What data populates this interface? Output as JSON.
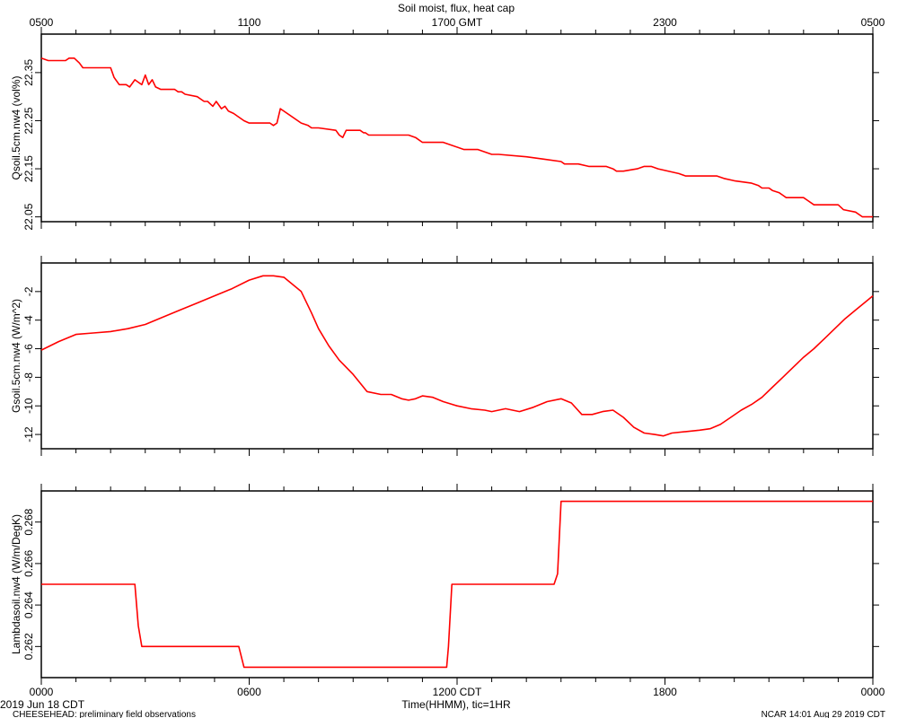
{
  "chart_title": "Soil moist, flux, heat cap",
  "top_time_labels": [
    "0500",
    "1100",
    "1700 GMT",
    "2300",
    "0500"
  ],
  "bottom_time_labels": [
    "0000",
    "0600",
    "1200 CDT",
    "1800",
    "0000"
  ],
  "x_axis_label": "Time(HHMM), tic=1HR",
  "date_label": "2019 Jun 18 CDT",
  "footer_left": "CHEESEHEAD: preliminary field observations",
  "footer_right": "NCAR 14:01 Aug 29 2019 CDT",
  "line_color": "#ff0000",
  "chart_data": [
    {
      "type": "line",
      "ylabel": "Qsoil.5cm.nw4 (vol%)",
      "xlim": [
        0,
        24
      ],
      "ylim": [
        22.04,
        22.43
      ],
      "yticks": [
        22.05,
        22.15,
        22.25,
        22.35
      ],
      "ytick_labels": [
        "22.05",
        "22.15",
        "22.25",
        "22.35"
      ],
      "x": [
        0,
        0.2,
        0.7,
        0.8,
        0.95,
        1.1,
        1.2,
        1.4,
        2.0,
        2.1,
        2.25,
        2.45,
        2.55,
        2.7,
        2.8,
        2.9,
        3.0,
        3.1,
        3.2,
        3.3,
        3.45,
        3.7,
        3.85,
        3.95,
        4.05,
        4.15,
        4.5,
        4.7,
        4.8,
        4.95,
        5.05,
        5.2,
        5.3,
        5.4,
        5.55,
        5.65,
        5.85,
        6.0,
        6.5,
        6.6,
        6.7,
        6.8,
        6.9,
        7.5,
        7.7,
        7.8,
        8.0,
        8.5,
        8.6,
        8.7,
        8.8,
        9.0,
        9.2,
        9.3,
        9.35,
        9.45,
        10.0,
        10.6,
        10.8,
        11.0,
        11.6,
        12.2,
        12.6,
        13.0,
        13.2,
        14.0,
        14.5,
        15.0,
        15.1,
        15.5,
        15.8,
        16.0,
        16.3,
        16.5,
        16.6,
        16.8,
        17.2,
        17.4,
        17.6,
        17.8,
        18.4,
        18.6,
        19.5,
        19.7,
        20.0,
        20.5,
        20.7,
        20.8,
        21.0,
        21.1,
        21.3,
        21.4,
        21.5,
        22.0,
        22.1,
        22.3,
        23.0,
        23.15,
        23.5,
        23.7,
        24.0
      ],
      "y": [
        22.38,
        22.375,
        22.375,
        22.38,
        22.38,
        22.37,
        22.36,
        22.36,
        22.36,
        22.34,
        22.325,
        22.325,
        22.32,
        22.335,
        22.33,
        22.325,
        22.345,
        22.325,
        22.335,
        22.32,
        22.315,
        22.315,
        22.315,
        22.31,
        22.31,
        22.305,
        22.3,
        22.29,
        22.29,
        22.28,
        22.29,
        22.275,
        22.28,
        22.27,
        22.265,
        22.26,
        22.25,
        22.245,
        22.245,
        22.245,
        22.24,
        22.245,
        22.275,
        22.245,
        22.24,
        22.235,
        22.235,
        22.23,
        22.22,
        22.215,
        22.23,
        22.23,
        22.23,
        22.225,
        22.225,
        22.22,
        22.22,
        22.22,
        22.215,
        22.205,
        22.205,
        22.19,
        22.19,
        22.18,
        22.18,
        22.175,
        22.17,
        22.165,
        22.16,
        22.16,
        22.155,
        22.155,
        22.155,
        22.15,
        22.145,
        22.145,
        22.15,
        22.155,
        22.155,
        22.15,
        22.14,
        22.135,
        22.135,
        22.13,
        22.125,
        22.12,
        22.115,
        22.11,
        22.11,
        22.105,
        22.1,
        22.095,
        22.09,
        22.09,
        22.085,
        22.075,
        22.075,
        22.065,
        22.06,
        22.05,
        22.05
      ]
    },
    {
      "type": "line",
      "ylabel": "Gsoil.5cm.nw4 (W/m^2)",
      "xlim": [
        0,
        24
      ],
      "ylim": [
        -13,
        0
      ],
      "yticks": [
        -12,
        -10,
        -8,
        -6,
        -4,
        -2
      ],
      "ytick_labels": [
        "-12",
        "-10",
        "-8",
        "-6",
        "-4",
        "-2"
      ],
      "x": [
        0,
        0.5,
        1.0,
        1.5,
        2.0,
        2.5,
        3.0,
        3.5,
        4.0,
        4.5,
        5.0,
        5.5,
        6.0,
        6.4,
        6.7,
        7.0,
        7.5,
        7.8,
        8.0,
        8.3,
        8.6,
        9.0,
        9.4,
        9.8,
        10.1,
        10.4,
        10.6,
        10.8,
        11.0,
        11.3,
        11.6,
        12.0,
        12.4,
        12.8,
        13.0,
        13.4,
        13.8,
        14.2,
        14.6,
        15.0,
        15.3,
        15.6,
        15.9,
        16.2,
        16.5,
        16.8,
        17.1,
        17.4,
        17.7,
        17.95,
        18.2,
        18.6,
        19.0,
        19.3,
        19.6,
        19.9,
        20.2,
        20.5,
        20.8,
        21.1,
        21.4,
        21.7,
        22.0,
        22.3,
        22.6,
        22.9,
        23.2,
        23.5,
        23.8,
        24.0
      ],
      "y": [
        -6.1,
        -5.5,
        -5.0,
        -4.9,
        -4.8,
        -4.6,
        -4.3,
        -3.8,
        -3.3,
        -2.8,
        -2.3,
        -1.8,
        -1.2,
        -0.9,
        -0.9,
        -1.0,
        -2.0,
        -3.5,
        -4.6,
        -5.8,
        -6.8,
        -7.8,
        -9.0,
        -9.2,
        -9.2,
        -9.5,
        -9.6,
        -9.5,
        -9.3,
        -9.4,
        -9.7,
        -10.0,
        -10.2,
        -10.3,
        -10.4,
        -10.2,
        -10.4,
        -10.1,
        -9.7,
        -9.5,
        -9.8,
        -10.6,
        -10.6,
        -10.4,
        -10.3,
        -10.8,
        -11.5,
        -11.9,
        -12.0,
        -12.1,
        -11.9,
        -11.8,
        -11.7,
        -11.6,
        -11.3,
        -10.8,
        -10.3,
        -9.9,
        -9.4,
        -8.7,
        -8.0,
        -7.3,
        -6.6,
        -6.0,
        -5.3,
        -4.6,
        -3.9,
        -3.3,
        -2.7,
        -2.3
      ]
    },
    {
      "type": "line",
      "ylabel": "Lambdasoil.nw4 (W/m/DegK)",
      "xlim": [
        0,
        24
      ],
      "ylim": [
        0.2605,
        0.2695
      ],
      "yticks": [
        0.262,
        0.264,
        0.266,
        0.268
      ],
      "ytick_labels": [
        "0.262",
        "0.264",
        "0.266",
        "0.268"
      ],
      "x": [
        0,
        2.7,
        2.8,
        2.9,
        5.7,
        5.85,
        11.7,
        11.75,
        11.85,
        14.8,
        14.9,
        15.0,
        24.0
      ],
      "y": [
        0.265,
        0.265,
        0.263,
        0.262,
        0.262,
        0.261,
        0.261,
        0.262,
        0.265,
        0.265,
        0.2655,
        0.269,
        0.269
      ]
    }
  ]
}
